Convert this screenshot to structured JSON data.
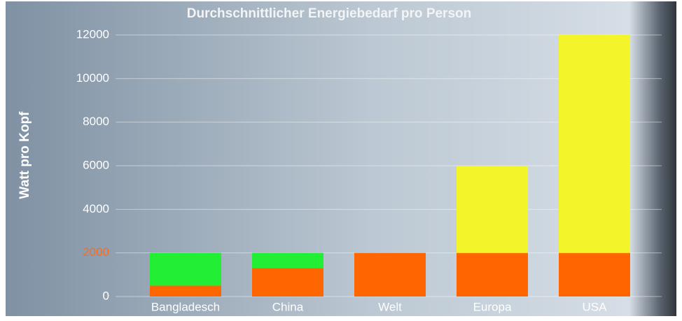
{
  "chart_data": {
    "type": "stacked_bar",
    "title": "Durchschnittlicher Energiebedarf pro Person",
    "y_label": "Watt pro Kopf",
    "categories": [
      "Bangladesch",
      "China",
      "Welt",
      "Europa",
      "USA"
    ],
    "series": [
      {
        "color": "#ff6600",
        "values": [
          500,
          1300,
          2000,
          2000,
          2000
        ]
      },
      {
        "color": "#22ee33",
        "values": [
          1500,
          700,
          0,
          0,
          0
        ]
      },
      {
        "color": "#f4f42a",
        "values": [
          0,
          0,
          0,
          4000,
          10000
        ]
      }
    ],
    "ylim": [
      0,
      12000
    ],
    "yticks": [
      0,
      2000,
      4000,
      6000,
      8000,
      10000,
      12000
    ],
    "ytick_colors": [
      "#ffffff",
      "#ff6a1a",
      "#ffffff",
      "#ffffff",
      "#ffffff",
      "#ffffff",
      "#ffffff"
    ],
    "grid": true
  }
}
